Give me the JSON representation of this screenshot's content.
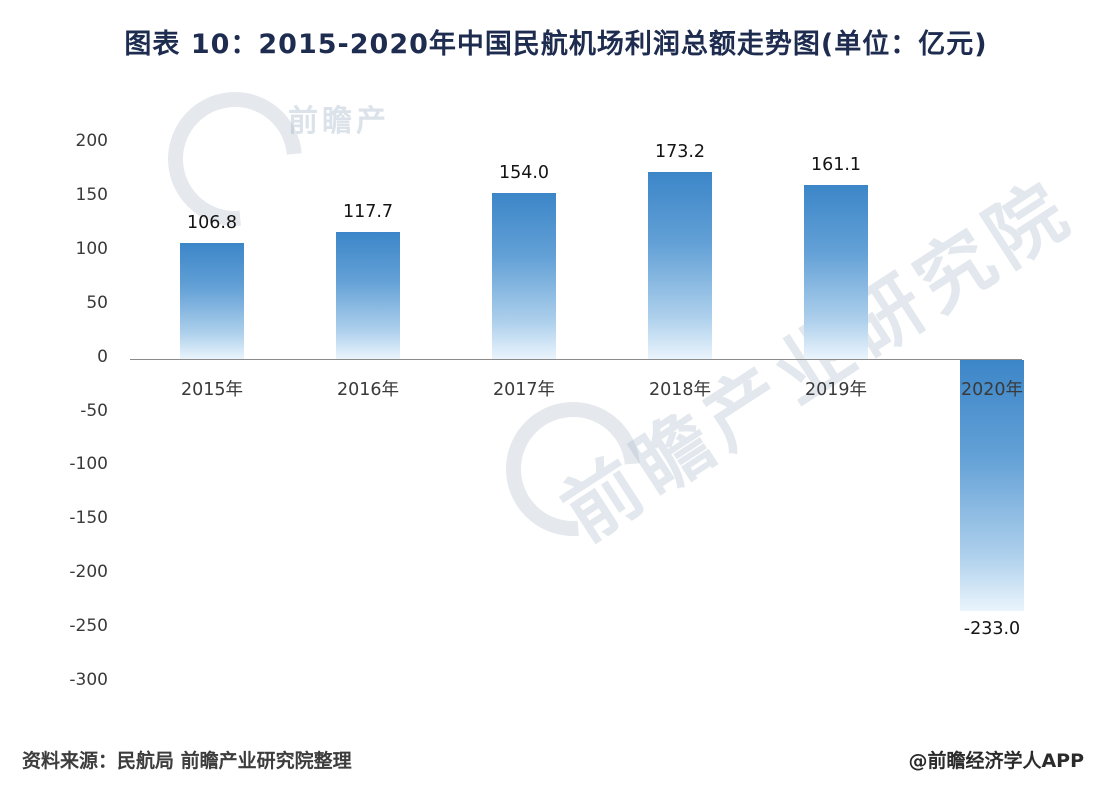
{
  "chart_data": {
    "type": "bar",
    "title": "图表 10：2015-2020年中国民航机场利润总额走势图(单位：亿元)",
    "categories": [
      "2015年",
      "2016年",
      "2017年",
      "2018年",
      "2019年",
      "2020年"
    ],
    "values": [
      106.8,
      117.7,
      154.0,
      173.2,
      161.1,
      -233.0
    ],
    "value_labels": [
      "106.8",
      "117.7",
      "154.0",
      "173.2",
      "161.1",
      "-233.0"
    ],
    "xlabel": "",
    "ylabel": "",
    "ylim": [
      -300,
      200
    ],
    "yticks": [
      200,
      150,
      100,
      50,
      0,
      -50,
      -100,
      -150,
      -200,
      -250,
      -300
    ],
    "grid": false,
    "legend": "none",
    "bar_color_top": "#3c86c8",
    "bar_color_bottom": "#eaf4fc",
    "axis_line_color": "#8a8a8a"
  },
  "footer": {
    "source": "资料来源：民航局 前瞻产业研究院整理",
    "credit": "@前瞻经济学人APP"
  },
  "watermark": {
    "text": "前瞻产业研究院",
    "logo_label": "前瞻产"
  }
}
